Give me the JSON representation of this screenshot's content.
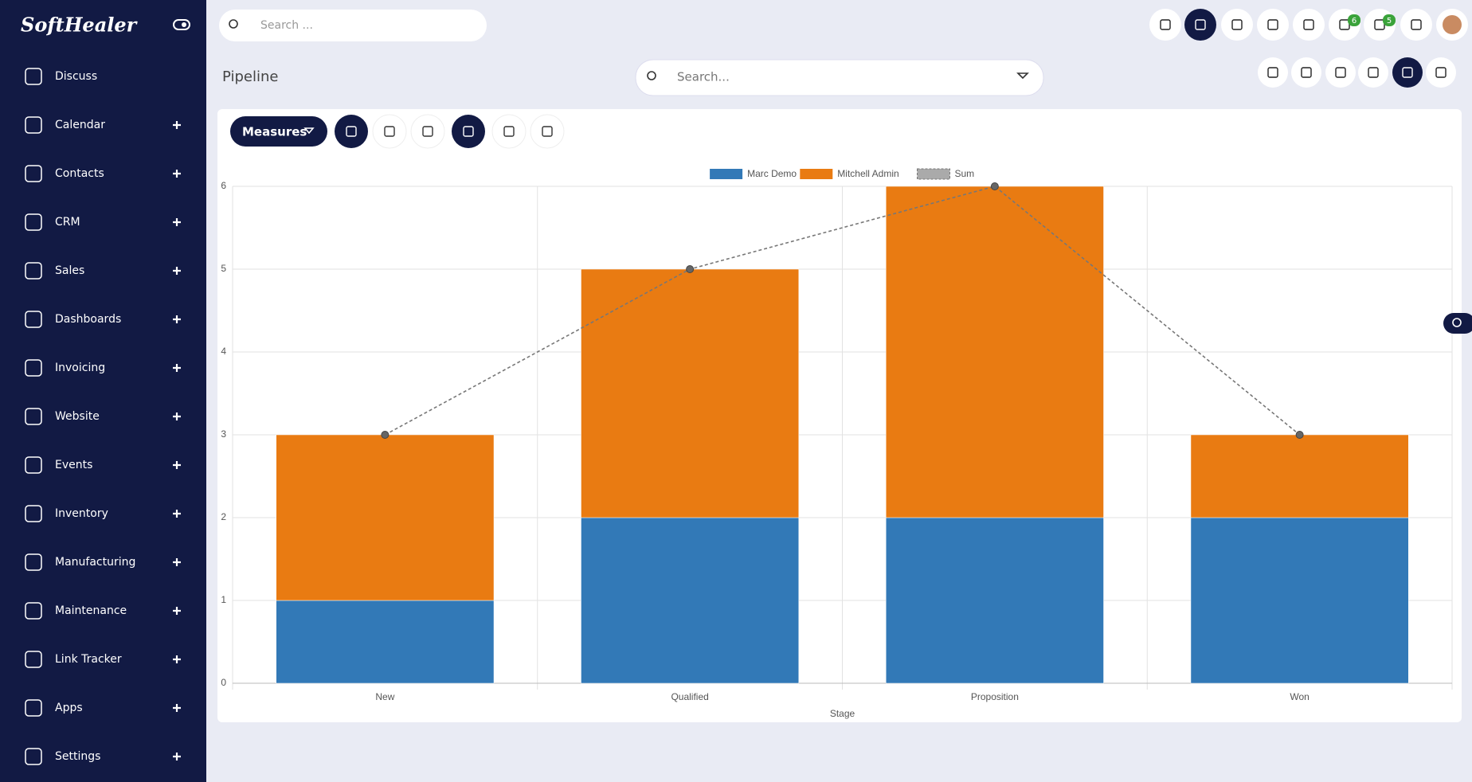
{
  "brand": "SoftHealer",
  "menu": [
    "Discuss",
    "Calendar",
    "Contacts",
    "CRM",
    "Sales",
    "Dashboards",
    "Invoicing",
    "Website",
    "Events",
    "Inventory",
    "Manufacturing",
    "Maintenance",
    "Link Tracker",
    "Apps",
    "Settings"
  ],
  "top_search": "Search ...",
  "badges": [
    "6",
    "5"
  ],
  "page_title": "Pipeline",
  "view_search": "Search...",
  "measures": "Measures",
  "chart_data": {
    "type": "bar",
    "stacked": true,
    "xlabel": "Stage",
    "categories": [
      "New",
      "Qualified",
      "Proposition",
      "Won"
    ],
    "series": [
      {
        "name": "Marc Demo",
        "color": "#3279b7",
        "values": [
          1,
          2,
          2,
          2
        ]
      },
      {
        "name": "Mitchell Admin",
        "color": "#e97b12",
        "values": [
          2,
          3,
          4,
          1
        ]
      },
      {
        "name": "Sum",
        "type": "line",
        "color": "#777777",
        "values": [
          3,
          5,
          6,
          3
        ]
      }
    ],
    "ylim": [
      0,
      6
    ],
    "yticks": [
      0,
      1,
      2,
      3,
      4,
      5,
      6
    ],
    "grid": true,
    "legend": "top"
  }
}
